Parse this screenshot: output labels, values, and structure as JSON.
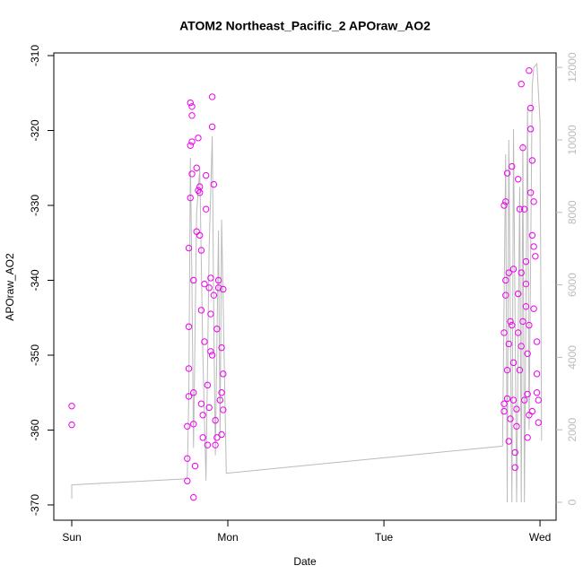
{
  "chart_data": {
    "type": "scatter",
    "title": "ATOM2 Northeast_Pacific_2 APOraw_AO2",
    "x_label": "Date",
    "y_label": "APOraw_AO2",
    "xlim": [
      -0.115,
      3.103
    ],
    "xticks": [
      {
        "value": 0,
        "label": "Sun"
      },
      {
        "value": 1,
        "label": "Mon"
      },
      {
        "value": 2,
        "label": "Tue"
      },
      {
        "value": 3,
        "label": "Wed"
      }
    ],
    "ylim": [
      -372.04,
      -309.64
    ],
    "yticks": [
      -310,
      -320,
      -330,
      -340,
      -350,
      -360,
      -370
    ],
    "y2lim": [
      -495,
      12400
    ],
    "y2ticks": [
      0,
      2000,
      4000,
      6000,
      8000,
      10000,
      12000
    ],
    "grid": false,
    "series": [
      {
        "color": "#bbbbbb",
        "axis": "y2",
        "x": [
          0,
          0,
          0.74,
          0.75,
          0.76,
          0.77,
          0.78,
          0.8,
          0.82,
          0.84,
          0.86,
          0.88,
          0.9,
          0.91,
          0.92,
          0.94,
          0.95,
          0.96,
          0.97,
          0.99,
          2.76,
          2.78,
          2.79,
          2.8,
          2.82,
          2.83,
          2.85,
          2.87,
          2.88,
          2.89,
          2.9,
          2.92,
          2.93,
          2.95,
          2.96,
          2.98,
          3.0,
          3.01
        ],
        "values": [
          100,
          480,
          650,
          3000,
          9500,
          6000,
          1500,
          8000,
          9200,
          4000,
          600,
          7000,
          10100,
          5000,
          1300,
          7500,
          1800,
          7800,
          5500,
          800,
          1550,
          9600,
          0,
          10000,
          0,
          10300,
          0,
          8700,
          0,
          9900,
          0,
          10900,
          2000,
          11500,
          12000,
          12100,
          10500,
          1700
        ]
      },
      {
        "color": "#ee00ee",
        "x": [
          0,
          0,
          0.74,
          0.74,
          0.74,
          0.75,
          0.75,
          0.75,
          0.75,
          0.76,
          0.76,
          0.76,
          0.77,
          0.77,
          0.77,
          0.77,
          0.78,
          0.78,
          0.78,
          0.78,
          0.79,
          0.8,
          0.8,
          0.81,
          0.81,
          0.82,
          0.82,
          0.82,
          0.83,
          0.83,
          0.83,
          0.84,
          0.84,
          0.85,
          0.85,
          0.86,
          0.86,
          0.87,
          0.87,
          0.88,
          0.88,
          0.89,
          0.89,
          0.89,
          0.9,
          0.9,
          0.9,
          0.91,
          0.91,
          0.92,
          0.92,
          0.93,
          0.93,
          0.94,
          0.94,
          0.95,
          0.96,
          0.96,
          0.96,
          0.97,
          0.97,
          0.97,
          2.77,
          2.77,
          2.77,
          2.77,
          2.78,
          2.78,
          2.78,
          2.79,
          2.79,
          2.79,
          2.8,
          2.8,
          2.8,
          2.81,
          2.81,
          2.82,
          2.82,
          2.83,
          2.83,
          2.83,
          2.84,
          2.84,
          2.85,
          2.85,
          2.86,
          2.86,
          2.86,
          2.87,
          2.87,
          2.88,
          2.88,
          2.88,
          2.89,
          2.89,
          2.9,
          2.9,
          2.91,
          2.91,
          2.91,
          2.92,
          2.92,
          2.92,
          2.93,
          2.93,
          2.93,
          2.94,
          2.94,
          2.94,
          2.95,
          2.95,
          2.95,
          2.96,
          2.96,
          2.96,
          2.97,
          2.98,
          2.98,
          2.98,
          2.99,
          2.99
        ],
        "values": [
          -356.8,
          -359.3,
          -366.8,
          -363.8,
          -359.5,
          -355.5,
          -351.8,
          -346.2,
          -335.7,
          -329,
          -322,
          -316.3,
          -316.8,
          -318,
          -321.5,
          -325.8,
          -340,
          -355,
          -359.2,
          -369,
          -364.8,
          -333.5,
          -325,
          -321,
          -328,
          -328.3,
          -327.5,
          -334,
          -336,
          -344,
          -356.5,
          -361,
          -358,
          -348.2,
          -340.5,
          -330.5,
          -326,
          -354,
          -362,
          -357,
          -341,
          -339.7,
          -349.5,
          -344.5,
          -350,
          -319.5,
          -315.5,
          -327.2,
          -342,
          -358.7,
          -362,
          -361,
          -346.5,
          -341,
          -340,
          -356,
          -360.6,
          -355,
          -349,
          -352.5,
          -341.2,
          -357.3,
          -356.5,
          -357.5,
          -347,
          -330,
          -329.5,
          -340,
          -342,
          -325.7,
          -352,
          -355.8,
          -361.5,
          -348.5,
          -339,
          -345.5,
          -358.5,
          -324.8,
          -346,
          -356,
          -351,
          -338.5,
          -363,
          -365,
          -359.5,
          -357.2,
          -341.8,
          -347,
          -326.5,
          -330.5,
          -352,
          -348.8,
          -339,
          -313.8,
          -322.3,
          -345.5,
          -356,
          -330.5,
          -340.5,
          -337.5,
          -343.5,
          -349.8,
          -355.2,
          -361,
          -358,
          -346,
          -312,
          -317,
          -319.8,
          -328.3,
          -324,
          -334,
          -357.5,
          -343.8,
          -335.5,
          -329.5,
          -336.8,
          -348.2,
          -352.5,
          -355,
          -359,
          -356
        ]
      }
    ]
  }
}
